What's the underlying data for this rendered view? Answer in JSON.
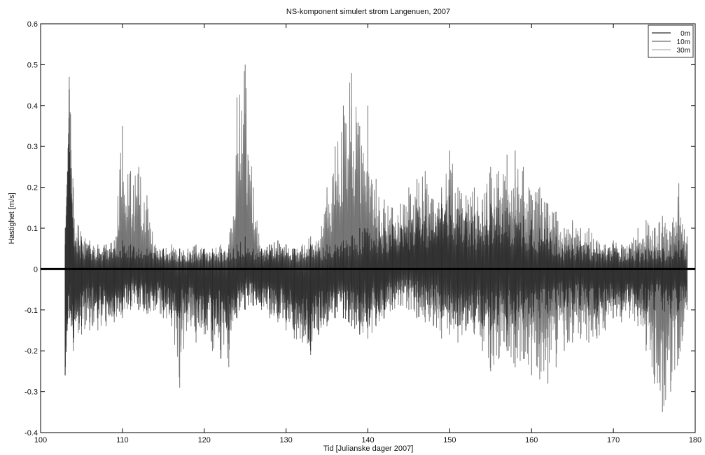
{
  "chart_data": {
    "type": "line",
    "title": "NS-komponent simulert strom Langenuen, 2007",
    "xlabel": "Tid [Julianske dager 2007]",
    "ylabel": "Hastighet [m/s]",
    "xlim": [
      100,
      180
    ],
    "ylim": [
      -0.4,
      0.6
    ],
    "xticks": [
      100,
      110,
      120,
      130,
      140,
      150,
      160,
      170,
      180
    ],
    "yticks": [
      -0.4,
      -0.3,
      -0.2,
      -0.1,
      0,
      0.1,
      0.2,
      0.3,
      0.4,
      0.5,
      0.6
    ],
    "grid": false,
    "legend_position": "top-right",
    "zero_line": 0,
    "series": [
      {
        "name": "0m",
        "color": "#2b2b2b",
        "x": [
          103,
          103.5,
          104,
          105,
          106,
          107,
          108,
          109,
          110,
          111,
          112,
          113,
          114,
          115,
          116,
          117,
          118,
          119,
          120,
          121,
          122,
          123,
          124,
          125,
          126,
          127,
          128,
          129,
          130,
          131,
          132,
          133,
          134,
          135,
          136,
          137,
          138,
          139,
          140,
          141,
          142,
          143,
          144,
          145,
          146,
          147,
          148,
          149,
          150,
          151,
          152,
          153,
          154,
          155,
          156,
          157,
          158,
          159,
          160,
          161,
          162,
          163,
          164,
          165,
          166,
          167,
          168,
          169,
          170,
          171,
          172,
          173,
          174,
          175,
          176,
          177,
          178,
          179
        ],
        "envelope_max": [
          0.06,
          0.44,
          0.1,
          0.07,
          0.06,
          0.05,
          0.06,
          0.05,
          0.07,
          0.06,
          0.05,
          0.05,
          0.04,
          0.05,
          0.04,
          0.05,
          0.04,
          0.04,
          0.05,
          0.04,
          0.04,
          0.05,
          0.06,
          0.08,
          0.05,
          0.05,
          0.06,
          0.07,
          0.06,
          0.05,
          0.05,
          0.06,
          0.05,
          0.06,
          0.06,
          0.07,
          0.08,
          0.1,
          0.1,
          0.1,
          0.1,
          0.11,
          0.1,
          0.12,
          0.15,
          0.13,
          0.14,
          0.16,
          0.18,
          0.15,
          0.14,
          0.13,
          0.14,
          0.16,
          0.15,
          0.15,
          0.13,
          0.13,
          0.12,
          0.1,
          0.1,
          0.08,
          0.06,
          0.06,
          0.06,
          0.06,
          0.05,
          0.05,
          0.06,
          0.05,
          0.05,
          0.05,
          0.05,
          0.05,
          0.05,
          0.06,
          0.07,
          0.06
        ],
        "envelope_min": [
          -0.26,
          -0.12,
          -0.18,
          -0.14,
          -0.13,
          -0.12,
          -0.13,
          -0.11,
          -0.1,
          -0.09,
          -0.1,
          -0.1,
          -0.09,
          -0.1,
          -0.12,
          -0.12,
          -0.11,
          -0.15,
          -0.14,
          -0.15,
          -0.14,
          -0.15,
          -0.12,
          -0.1,
          -0.09,
          -0.09,
          -0.1,
          -0.12,
          -0.13,
          -0.15,
          -0.17,
          -0.2,
          -0.15,
          -0.13,
          -0.12,
          -0.12,
          -0.14,
          -0.16,
          -0.14,
          -0.12,
          -0.1,
          -0.08,
          -0.06,
          -0.07,
          -0.08,
          -0.1,
          -0.1,
          -0.12,
          -0.13,
          -0.14,
          -0.14,
          -0.13,
          -0.14,
          -0.15,
          -0.14,
          -0.15,
          -0.14,
          -0.12,
          -0.12,
          -0.12,
          -0.11,
          -0.1,
          -0.09,
          -0.1,
          -0.1,
          -0.1,
          -0.12,
          -0.1,
          -0.09,
          -0.1,
          -0.09,
          -0.1,
          -0.11,
          -0.1,
          -0.1,
          -0.12,
          -0.1,
          -0.08
        ]
      },
      {
        "name": "10m",
        "color": "#6e6e6e",
        "x": [
          103,
          103.5,
          104,
          105,
          106,
          107,
          108,
          109,
          110,
          111,
          112,
          113,
          114,
          115,
          116,
          117,
          118,
          119,
          120,
          121,
          122,
          123,
          124,
          125,
          126,
          127,
          128,
          129,
          130,
          131,
          132,
          133,
          134,
          135,
          136,
          137,
          138,
          139,
          140,
          141,
          142,
          143,
          144,
          145,
          146,
          147,
          148,
          149,
          150,
          151,
          152,
          153,
          154,
          155,
          156,
          157,
          158,
          159,
          160,
          161,
          162,
          163,
          164,
          165,
          166,
          167,
          168,
          169,
          170,
          171,
          172,
          173,
          174,
          175,
          176,
          177,
          178,
          179
        ],
        "envelope_max": [
          0.1,
          0.47,
          0.2,
          0.08,
          0.07,
          0.06,
          0.06,
          0.07,
          0.35,
          0.24,
          0.25,
          0.18,
          0.06,
          0.05,
          0.06,
          0.05,
          0.05,
          0.06,
          0.05,
          0.05,
          0.06,
          0.06,
          0.42,
          0.5,
          0.2,
          0.05,
          0.06,
          0.05,
          0.06,
          0.05,
          0.06,
          0.08,
          0.07,
          0.2,
          0.3,
          0.4,
          0.48,
          0.35,
          0.4,
          0.22,
          0.17,
          0.15,
          0.16,
          0.2,
          0.22,
          0.24,
          0.17,
          0.2,
          0.29,
          0.2,
          0.18,
          0.2,
          0.17,
          0.25,
          0.24,
          0.28,
          0.29,
          0.25,
          0.18,
          0.2,
          0.16,
          0.14,
          0.1,
          0.12,
          0.1,
          0.1,
          0.07,
          0.06,
          0.07,
          0.06,
          0.06,
          0.1,
          0.12,
          0.1,
          0.13,
          0.09,
          0.21,
          0.08
        ],
        "envelope_min": [
          -0.26,
          -0.05,
          -0.2,
          -0.16,
          -0.15,
          -0.15,
          -0.14,
          -0.13,
          -0.12,
          -0.1,
          -0.1,
          -0.11,
          -0.1,
          -0.12,
          -0.14,
          -0.29,
          -0.13,
          -0.18,
          -0.16,
          -0.2,
          -0.22,
          -0.24,
          -0.12,
          -0.05,
          -0.07,
          -0.1,
          -0.12,
          -0.13,
          -0.15,
          -0.17,
          -0.18,
          -0.21,
          -0.16,
          -0.14,
          -0.12,
          -0.1,
          -0.1,
          -0.15,
          -0.17,
          -0.14,
          -0.12,
          -0.1,
          -0.09,
          -0.1,
          -0.12,
          -0.13,
          -0.14,
          -0.17,
          -0.16,
          -0.18,
          -0.15,
          -0.16,
          -0.2,
          -0.25,
          -0.22,
          -0.2,
          -0.24,
          -0.22,
          -0.26,
          -0.27,
          -0.28,
          -0.24,
          -0.2,
          -0.18,
          -0.17,
          -0.18,
          -0.17,
          -0.15,
          -0.12,
          -0.13,
          -0.12,
          -0.14,
          -0.2,
          -0.28,
          -0.35,
          -0.3,
          -0.22,
          -0.1
        ]
      },
      {
        "name": "30m",
        "color": "#b5b5b5",
        "x": [
          103,
          103.5,
          104,
          105,
          106,
          107,
          108,
          109,
          110,
          111,
          112,
          113,
          114,
          115,
          116,
          117,
          118,
          119,
          120,
          121,
          122,
          123,
          124,
          125,
          126,
          127,
          128,
          129,
          130,
          131,
          132,
          133,
          134,
          135,
          136,
          137,
          138,
          139,
          140,
          141,
          142,
          143,
          144,
          145,
          146,
          147,
          148,
          149,
          150,
          151,
          152,
          153,
          154,
          155,
          156,
          157,
          158,
          159,
          160,
          161,
          162,
          163,
          164,
          165,
          166,
          167,
          168,
          169,
          170,
          171,
          172,
          173,
          174,
          175,
          176,
          177,
          178,
          179
        ],
        "envelope_max": [
          0.05,
          0.3,
          0.12,
          0.06,
          0.05,
          0.05,
          0.05,
          0.05,
          0.2,
          0.15,
          0.12,
          0.08,
          0.05,
          0.04,
          0.05,
          0.04,
          0.04,
          0.05,
          0.04,
          0.04,
          0.05,
          0.05,
          0.25,
          0.3,
          0.12,
          0.04,
          0.05,
          0.04,
          0.05,
          0.04,
          0.05,
          0.06,
          0.05,
          0.12,
          0.2,
          0.28,
          0.3,
          0.22,
          0.25,
          0.15,
          0.12,
          0.1,
          0.11,
          0.13,
          0.15,
          0.17,
          0.12,
          0.14,
          0.2,
          0.14,
          0.13,
          0.14,
          0.12,
          0.17,
          0.16,
          0.19,
          0.2,
          0.17,
          0.12,
          0.14,
          0.11,
          0.1,
          0.07,
          0.08,
          0.07,
          0.07,
          0.05,
          0.05,
          0.05,
          0.05,
          0.05,
          0.07,
          0.08,
          0.07,
          0.09,
          0.06,
          0.14,
          0.06
        ],
        "envelope_min": [
          -0.18,
          -0.04,
          -0.14,
          -0.11,
          -0.1,
          -0.1,
          -0.1,
          -0.09,
          -0.08,
          -0.07,
          -0.07,
          -0.08,
          -0.07,
          -0.08,
          -0.1,
          -0.2,
          -0.09,
          -0.12,
          -0.11,
          -0.14,
          -0.15,
          -0.16,
          -0.08,
          -0.04,
          -0.05,
          -0.07,
          -0.08,
          -0.09,
          -0.1,
          -0.12,
          -0.12,
          -0.14,
          -0.11,
          -0.1,
          -0.08,
          -0.07,
          -0.07,
          -0.1,
          -0.12,
          -0.1,
          -0.08,
          -0.07,
          -0.06,
          -0.07,
          -0.08,
          -0.09,
          -0.1,
          -0.12,
          -0.11,
          -0.12,
          -0.1,
          -0.11,
          -0.14,
          -0.17,
          -0.15,
          -0.14,
          -0.16,
          -0.15,
          -0.18,
          -0.19,
          -0.2,
          -0.17,
          -0.14,
          -0.12,
          -0.12,
          -0.12,
          -0.12,
          -0.1,
          -0.08,
          -0.09,
          -0.08,
          -0.1,
          -0.14,
          -0.2,
          -0.25,
          -0.21,
          -0.15,
          -0.07
        ]
      }
    ]
  }
}
